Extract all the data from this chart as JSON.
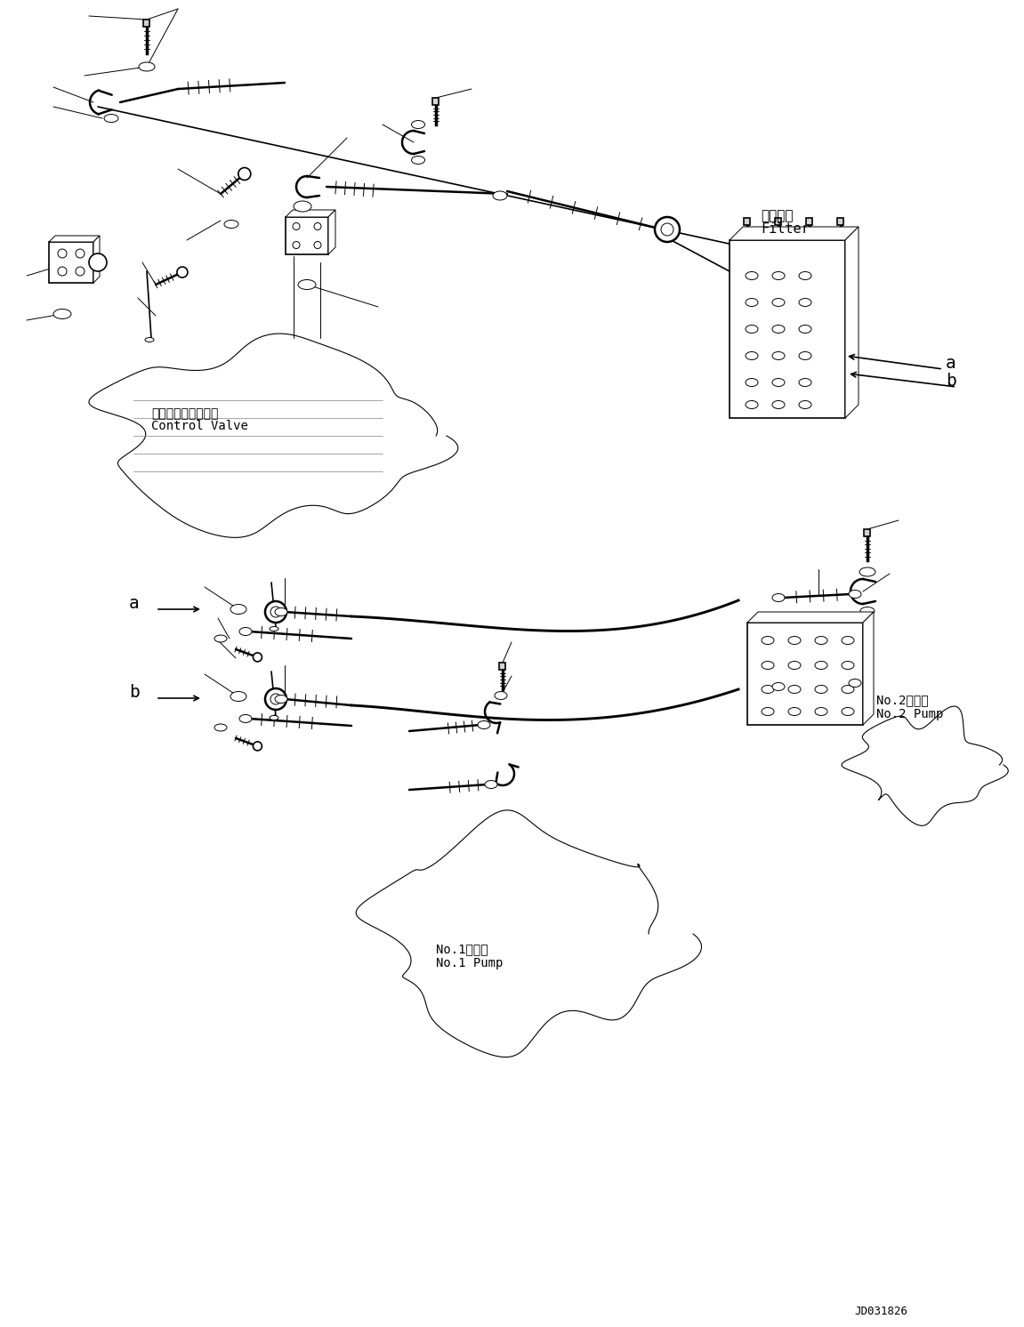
{
  "bg_color": "#ffffff",
  "line_color": "#000000",
  "fig_width": 11.51,
  "fig_height": 14.92,
  "dpi": 100,
  "watermark": "JD031826",
  "labels": {
    "filter_jp": "フィルタ",
    "filter_en": "Filter",
    "control_valve_jp": "コントロールバルブ",
    "control_valve_en": "Control Valve",
    "no2_pump_jp": "No.2ポンプ",
    "no2_pump_en": "No.2 Pump",
    "no1_pump_jp": "No.1ポンプ",
    "no1_pump_en": "No.1 Pump"
  }
}
